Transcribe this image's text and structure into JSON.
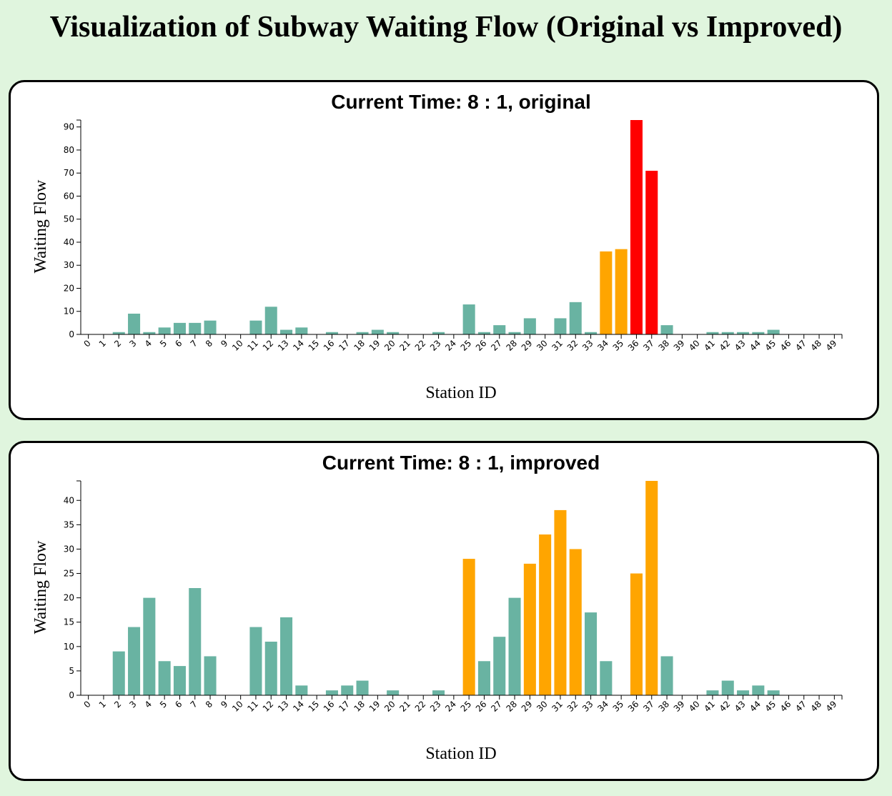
{
  "page": {
    "title": "Visualization of Subway Waiting Flow (Original vs Improved)"
  },
  "colors": {
    "normal": "#69b3a2",
    "warning": "#ffa500",
    "critical": "#ff0000"
  },
  "chart_data": [
    {
      "type": "bar",
      "title": "Current Time: 8 : 1, original",
      "xlabel": "Station ID",
      "ylabel": "Waiting Flow",
      "ylim": [
        0,
        93
      ],
      "yticks": [
        0,
        10,
        20,
        30,
        40,
        50,
        60,
        70,
        80,
        90
      ],
      "categories": [
        "0",
        "1",
        "2",
        "3",
        "4",
        "5",
        "6",
        "7",
        "8",
        "9",
        "10",
        "11",
        "12",
        "13",
        "14",
        "15",
        "16",
        "17",
        "18",
        "19",
        "20",
        "21",
        "22",
        "23",
        "24",
        "25",
        "26",
        "27",
        "28",
        "29",
        "30",
        "31",
        "32",
        "33",
        "34",
        "35",
        "36",
        "37",
        "38",
        "39",
        "40",
        "41",
        "42",
        "43",
        "44",
        "45",
        "46",
        "47",
        "48",
        "49"
      ],
      "values": [
        0,
        0,
        1,
        9,
        1,
        3,
        5,
        5,
        6,
        0,
        0,
        6,
        12,
        2,
        3,
        0,
        1,
        0,
        1,
        2,
        1,
        0,
        0,
        1,
        0,
        13,
        1,
        4,
        1,
        7,
        0,
        7,
        14,
        1,
        36,
        37,
        93,
        71,
        4,
        0,
        0,
        1,
        1,
        1,
        1,
        2,
        0,
        0,
        0,
        0
      ],
      "bar_colors": [
        "normal",
        "normal",
        "normal",
        "normal",
        "normal",
        "normal",
        "normal",
        "normal",
        "normal",
        "normal",
        "normal",
        "normal",
        "normal",
        "normal",
        "normal",
        "normal",
        "normal",
        "normal",
        "normal",
        "normal",
        "normal",
        "normal",
        "normal",
        "normal",
        "normal",
        "normal",
        "normal",
        "normal",
        "normal",
        "normal",
        "normal",
        "normal",
        "normal",
        "normal",
        "warning",
        "warning",
        "critical",
        "critical",
        "normal",
        "normal",
        "normal",
        "normal",
        "normal",
        "normal",
        "normal",
        "normal",
        "normal",
        "normal",
        "normal",
        "normal"
      ]
    },
    {
      "type": "bar",
      "title": "Current Time: 8 : 1, improved",
      "xlabel": "Station ID",
      "ylabel": "Waiting Flow",
      "ylim": [
        0,
        44
      ],
      "yticks": [
        0,
        5,
        10,
        15,
        20,
        25,
        30,
        35,
        40
      ],
      "categories": [
        "0",
        "1",
        "2",
        "3",
        "4",
        "5",
        "6",
        "7",
        "8",
        "9",
        "10",
        "11",
        "12",
        "13",
        "14",
        "15",
        "16",
        "17",
        "18",
        "19",
        "20",
        "21",
        "22",
        "23",
        "24",
        "25",
        "26",
        "27",
        "28",
        "29",
        "30",
        "31",
        "32",
        "33",
        "34",
        "35",
        "36",
        "37",
        "38",
        "39",
        "40",
        "41",
        "42",
        "43",
        "44",
        "45",
        "46",
        "47",
        "48",
        "49"
      ],
      "values": [
        0,
        0,
        9,
        14,
        20,
        7,
        6,
        22,
        8,
        0,
        0,
        14,
        11,
        16,
        2,
        0,
        1,
        2,
        3,
        0,
        1,
        0,
        0,
        1,
        0,
        28,
        7,
        12,
        20,
        27,
        33,
        38,
        30,
        17,
        7,
        0,
        25,
        44,
        8,
        0,
        0,
        1,
        3,
        1,
        2,
        1,
        0,
        0,
        0,
        0
      ],
      "bar_colors": [
        "normal",
        "normal",
        "normal",
        "normal",
        "normal",
        "normal",
        "normal",
        "normal",
        "normal",
        "normal",
        "normal",
        "normal",
        "normal",
        "normal",
        "normal",
        "normal",
        "normal",
        "normal",
        "normal",
        "normal",
        "normal",
        "normal",
        "normal",
        "normal",
        "normal",
        "warning",
        "normal",
        "normal",
        "normal",
        "warning",
        "warning",
        "warning",
        "warning",
        "normal",
        "normal",
        "normal",
        "warning",
        "warning",
        "normal",
        "normal",
        "normal",
        "normal",
        "normal",
        "normal",
        "normal",
        "normal",
        "normal",
        "normal",
        "normal",
        "normal"
      ]
    }
  ]
}
